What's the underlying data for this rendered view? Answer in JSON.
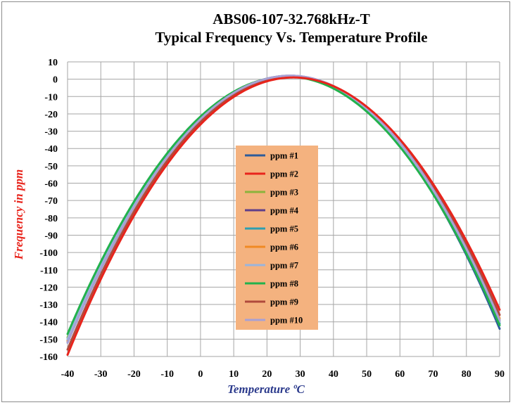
{
  "chart_data": {
    "type": "line",
    "title": "ABS06-107-32.768kHz-T",
    "subtitle": "Typical Frequency Vs. Temperature Profile",
    "xlabel": "Temperature ºC",
    "ylabel": "Frequency in ppm",
    "xlim": [
      -40,
      90
    ],
    "ylim": [
      -160,
      10
    ],
    "x_ticks": [
      -40,
      -30,
      -20,
      -10,
      0,
      10,
      20,
      30,
      40,
      50,
      60,
      70,
      80,
      90
    ],
    "y_ticks": [
      10,
      0,
      -10,
      -20,
      -30,
      -40,
      -50,
      -60,
      -70,
      -80,
      -90,
      -100,
      -110,
      -120,
      -130,
      -140,
      -150,
      -160
    ],
    "grid": true,
    "legend_position": "center",
    "legend_background": "#f4b27f",
    "x": [
      -40,
      90
    ],
    "series": [
      {
        "name": "ppm #1",
        "color": "#2e5c9a",
        "values": [
          -152,
          -144
        ]
      },
      {
        "name": "ppm #2",
        "color": "#e8241c",
        "values": [
          -159,
          -133
        ]
      },
      {
        "name": "ppm #3",
        "color": "#8cb33c",
        "values": [
          -149,
          -140
        ]
      },
      {
        "name": "ppm #4",
        "color": "#5f3f8a",
        "values": [
          -151,
          -139
        ]
      },
      {
        "name": "ppm #5",
        "color": "#2e9fb0",
        "values": [
          -150,
          -141
        ]
      },
      {
        "name": "ppm #6",
        "color": "#f08a24",
        "values": [
          -151,
          -138
        ]
      },
      {
        "name": "ppm #7",
        "color": "#9ab4dc",
        "values": [
          -150,
          -140
        ]
      },
      {
        "name": "ppm #8",
        "color": "#22b24c",
        "values": [
          -147,
          -142
        ]
      },
      {
        "name": "ppm #9",
        "color": "#b04a3c",
        "values": [
          -156,
          -136
        ]
      },
      {
        "name": "ppm #10",
        "color": "#a8a0d4",
        "values": [
          -152,
          -139
        ]
      }
    ],
    "turnover": [
      {
        "name": "ppm #1",
        "x": 27,
        "y": 1.5
      },
      {
        "name": "ppm #2",
        "x": 28,
        "y": 1
      },
      {
        "name": "ppm #3",
        "x": 26,
        "y": 1.5
      },
      {
        "name": "ppm #4",
        "x": 27,
        "y": 2
      },
      {
        "name": "ppm #5",
        "x": 26.5,
        "y": 1.5
      },
      {
        "name": "ppm #6",
        "x": 27.5,
        "y": 1.5
      },
      {
        "name": "ppm #7",
        "x": 27,
        "y": 1.5
      },
      {
        "name": "ppm #8",
        "x": 26,
        "y": 1.5
      },
      {
        "name": "ppm #9",
        "x": 27.5,
        "y": 1.5
      },
      {
        "name": "ppm #10",
        "x": 27,
        "y": 2
      }
    ]
  }
}
